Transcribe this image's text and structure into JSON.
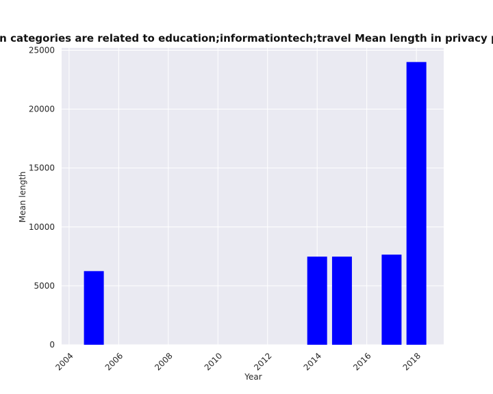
{
  "chart_data": {
    "type": "bar",
    "title": "Mean length in privacy policies by year when categories are related to education;informationtech;travel Mean length in privacy policies by year",
    "title_visible": "en categories are related to education;informationtech;travel Mean length in privacy policies by",
    "xlabel": "Year",
    "ylabel": "Mean length",
    "x": [
      2005,
      2014,
      2015,
      2017,
      2018
    ],
    "values": [
      6250,
      7480,
      7480,
      7650,
      24000
    ],
    "xlim": [
      2003.7,
      2019.1
    ],
    "ylim": [
      0,
      25200
    ],
    "xticks": [
      2004,
      2006,
      2008,
      2010,
      2012,
      2014,
      2016,
      2018
    ],
    "yticks": [
      0,
      5000,
      10000,
      15000,
      20000,
      25000
    ],
    "bar_color": "#0000ff",
    "background": "#eaeaf2",
    "grid": true
  }
}
